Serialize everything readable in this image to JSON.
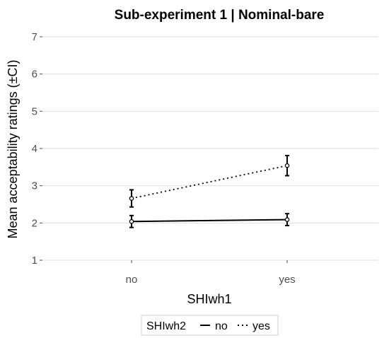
{
  "chart_data": {
    "type": "line",
    "title": "Sub-experiment 1 | Nominal-bare",
    "xlabel": "SHIwh1",
    "ylabel": "Mean acceptability ratings (±CI)",
    "categories": [
      "no",
      "yes"
    ],
    "ylim": [
      1,
      7
    ],
    "yticks": [
      "1",
      "2",
      "3",
      "4",
      "5",
      "6",
      "7"
    ],
    "grid": true,
    "legend": {
      "title": "SHIwh2",
      "position": "bottom",
      "entries": [
        "no",
        "yes"
      ]
    },
    "series": [
      {
        "name": "no",
        "line_style": "solid",
        "values": [
          2.04,
          2.09
        ],
        "ci_low": [
          1.88,
          1.93
        ],
        "ci_high": [
          2.2,
          2.25
        ]
      },
      {
        "name": "yes",
        "line_style": "dotted",
        "values": [
          2.66,
          3.54
        ],
        "ci_low": [
          2.43,
          3.27
        ],
        "ci_high": [
          2.89,
          3.81
        ]
      }
    ]
  }
}
